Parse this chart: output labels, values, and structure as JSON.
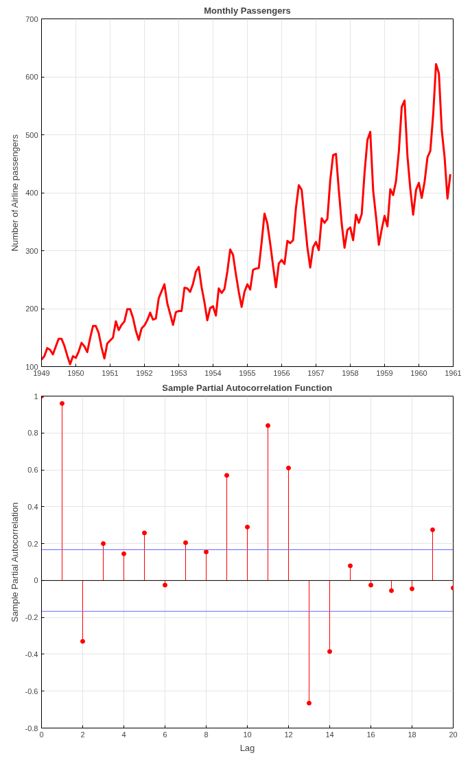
{
  "chart_data": [
    {
      "type": "line",
      "title": "Monthly Passengers",
      "ylabel": "Number of Airline passengers",
      "xlim": [
        1949,
        1961
      ],
      "xticks": [
        1949,
        1950,
        1951,
        1952,
        1953,
        1954,
        1955,
        1956,
        1957,
        1958,
        1959,
        1960,
        1961
      ],
      "ylim": [
        100,
        700
      ],
      "yticks": [
        100,
        200,
        300,
        400,
        500,
        600,
        700
      ],
      "grid": true,
      "line_style": "solid",
      "marker": "none",
      "series": [
        {
          "color": "#ff0000",
          "x": [
            1949.0,
            1949.083,
            1949.167,
            1949.25,
            1949.333,
            1949.417,
            1949.5,
            1949.583,
            1949.667,
            1949.75,
            1949.833,
            1949.917,
            1950.0,
            1950.083,
            1950.167,
            1950.25,
            1950.333,
            1950.417,
            1950.5,
            1950.583,
            1950.667,
            1950.75,
            1950.833,
            1950.917,
            1951.0,
            1951.083,
            1951.167,
            1951.25,
            1951.333,
            1951.417,
            1951.5,
            1951.583,
            1951.667,
            1951.75,
            1951.833,
            1951.917,
            1952.0,
            1952.083,
            1952.167,
            1952.25,
            1952.333,
            1952.417,
            1952.5,
            1952.583,
            1952.667,
            1952.75,
            1952.833,
            1952.917,
            1953.0,
            1953.083,
            1953.167,
            1953.25,
            1953.333,
            1953.417,
            1953.5,
            1953.583,
            1953.667,
            1953.75,
            1953.833,
            1953.917,
            1954.0,
            1954.083,
            1954.167,
            1954.25,
            1954.333,
            1954.417,
            1954.5,
            1954.583,
            1954.667,
            1954.75,
            1954.833,
            1954.917,
            1955.0,
            1955.083,
            1955.167,
            1955.25,
            1955.333,
            1955.417,
            1955.5,
            1955.583,
            1955.667,
            1955.75,
            1955.833,
            1955.917,
            1956.0,
            1956.083,
            1956.167,
            1956.25,
            1956.333,
            1956.417,
            1956.5,
            1956.583,
            1956.667,
            1956.75,
            1956.833,
            1956.917,
            1957.0,
            1957.083,
            1957.167,
            1957.25,
            1957.333,
            1957.417,
            1957.5,
            1957.583,
            1957.667,
            1957.75,
            1957.833,
            1957.917,
            1958.0,
            1958.083,
            1958.167,
            1958.25,
            1958.333,
            1958.417,
            1958.5,
            1958.583,
            1958.667,
            1958.75,
            1958.833,
            1958.917,
            1959.0,
            1959.083,
            1959.167,
            1959.25,
            1959.333,
            1959.417,
            1959.5,
            1959.583,
            1959.667,
            1959.75,
            1959.833,
            1959.917,
            1960.0,
            1960.083,
            1960.167,
            1960.25,
            1960.333,
            1960.417,
            1960.5,
            1960.583,
            1960.667,
            1960.75,
            1960.833,
            1960.917
          ],
          "values": [
            112,
            118,
            132,
            129,
            121,
            135,
            148,
            148,
            136,
            119,
            104,
            118,
            115,
            126,
            141,
            135,
            125,
            149,
            170,
            170,
            158,
            133,
            114,
            140,
            145,
            150,
            178,
            163,
            172,
            178,
            199,
            199,
            184,
            162,
            146,
            166,
            171,
            180,
            193,
            181,
            183,
            218,
            230,
            242,
            209,
            191,
            172,
            194,
            196,
            196,
            236,
            235,
            229,
            243,
            264,
            272,
            237,
            211,
            180,
            201,
            204,
            188,
            235,
            227,
            234,
            264,
            302,
            293,
            259,
            229,
            203,
            229,
            242,
            233,
            267,
            269,
            270,
            315,
            364,
            347,
            312,
            274,
            237,
            278,
            284,
            277,
            317,
            313,
            318,
            374,
            413,
            405,
            355,
            306,
            271,
            306,
            315,
            301,
            356,
            348,
            355,
            422,
            465,
            467,
            404,
            347,
            305,
            336,
            340,
            318,
            362,
            348,
            363,
            435,
            491,
            505,
            404,
            359,
            310,
            337,
            360,
            342,
            406,
            396,
            420,
            472,
            548,
            559,
            463,
            407,
            362,
            405,
            417,
            391,
            419,
            461,
            472,
            535,
            622,
            606,
            508,
            461,
            390,
            432
          ]
        }
      ]
    },
    {
      "type": "lollipop",
      "title": "Sample Partial Autocorrelation Function",
      "xlabel": "Lag",
      "ylabel": "Sample Partial Autocorrelation",
      "xlim": [
        0,
        20
      ],
      "xticks": [
        0,
        2,
        4,
        6,
        8,
        10,
        12,
        14,
        16,
        18,
        20
      ],
      "ylim": [
        -0.8,
        1
      ],
      "yticks": [
        -0.8,
        -0.6,
        -0.4,
        -0.2,
        0,
        0.2,
        0.4,
        0.6,
        0.8,
        1
      ],
      "grid": true,
      "marker": "circle",
      "x": [
        0,
        1,
        2,
        3,
        4,
        5,
        6,
        7,
        8,
        9,
        10,
        11,
        12,
        13,
        14,
        15,
        16,
        17,
        18,
        19,
        20
      ],
      "series": [
        {
          "color": "#ff0000",
          "values": [
            1,
            0.96,
            -0.33,
            0.2,
            0.145,
            0.258,
            -0.025,
            0.205,
            0.155,
            0.57,
            0.29,
            0.84,
            0.61,
            -0.665,
            -0.385,
            0.08,
            -0.025,
            -0.055,
            -0.045,
            0.275,
            -0.04
          ]
        }
      ],
      "ref_lines": [
        {
          "axis": "y",
          "value": 0.167,
          "color": "#6666ff"
        },
        {
          "axis": "y",
          "value": -0.167,
          "color": "#6666ff"
        }
      ]
    }
  ]
}
